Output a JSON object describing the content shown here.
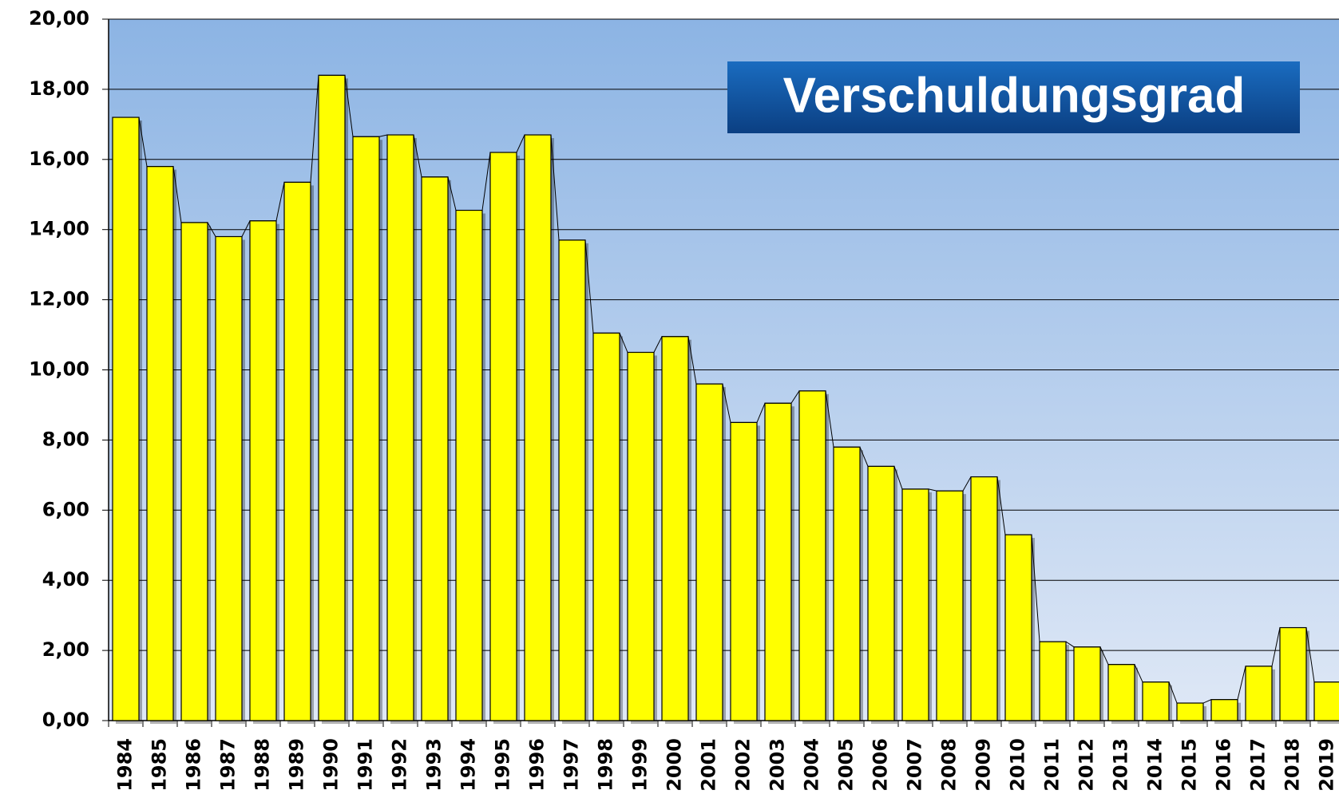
{
  "chart_data": {
    "type": "bar",
    "title": "Verschuldungsgrad",
    "categories": [
      "1984",
      "1985",
      "1986",
      "1987",
      "1988",
      "1989",
      "1990",
      "1991",
      "1992",
      "1993",
      "1994",
      "1995",
      "1996",
      "1997",
      "1998",
      "1999",
      "2000",
      "2001",
      "2002",
      "2003",
      "2004",
      "2005",
      "2006",
      "2007",
      "2008",
      "2009",
      "2010",
      "2011",
      "2012",
      "2013",
      "2014",
      "2015",
      "2016",
      "2017",
      "2018",
      "2019"
    ],
    "values": [
      17.2,
      15.8,
      14.2,
      13.8,
      14.25,
      15.35,
      18.4,
      16.65,
      16.7,
      15.5,
      14.55,
      16.2,
      16.7,
      13.7,
      11.05,
      10.5,
      10.95,
      9.6,
      8.5,
      9.05,
      9.4,
      7.8,
      7.25,
      6.6,
      6.55,
      6.95,
      5.3,
      2.25,
      2.1,
      1.6,
      1.1,
      0.5,
      0.6,
      1.55,
      2.65,
      1.1
    ],
    "color": "#ffff00",
    "ylim": [
      0,
      20
    ],
    "yticks": [
      {
        "value": 0,
        "label": "0,00"
      },
      {
        "value": 2,
        "label": "2,00"
      },
      {
        "value": 4,
        "label": "4,00"
      },
      {
        "value": 6,
        "label": "6,00"
      },
      {
        "value": 8,
        "label": "8,00"
      },
      {
        "value": 10,
        "label": "10,00"
      },
      {
        "value": 12,
        "label": "12,00"
      },
      {
        "value": 14,
        "label": "14,00"
      },
      {
        "value": 16,
        "label": "16,00"
      },
      {
        "value": 18,
        "label": "18,00"
      },
      {
        "value": 20,
        "label": "20,00"
      }
    ],
    "grid": true
  }
}
